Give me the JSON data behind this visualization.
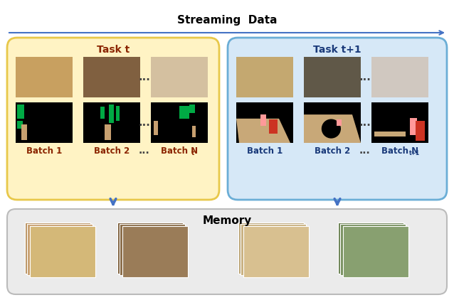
{
  "title": "Streaming  Data",
  "task_t_title": "Task t",
  "task_t1_title": "Task t+1",
  "memory_title": "Memory",
  "task_t_color": "#FFF3C4",
  "task_t_edge_color": "#E8C84A",
  "task_t1_color": "#D6E8F7",
  "task_t1_edge_color": "#6BAED6",
  "memory_color": "#EBEBEB",
  "memory_edge_color": "#BBBBBB",
  "task_t_title_color": "#8B2500",
  "task_t1_title_color": "#1A3A7A",
  "batch_t_color": "#8B2500",
  "batch_t1_color": "#1A3A7A",
  "arrow_color": "#4472C4",
  "bg_color": "#FFFFFF",
  "dots_color": "#444444"
}
